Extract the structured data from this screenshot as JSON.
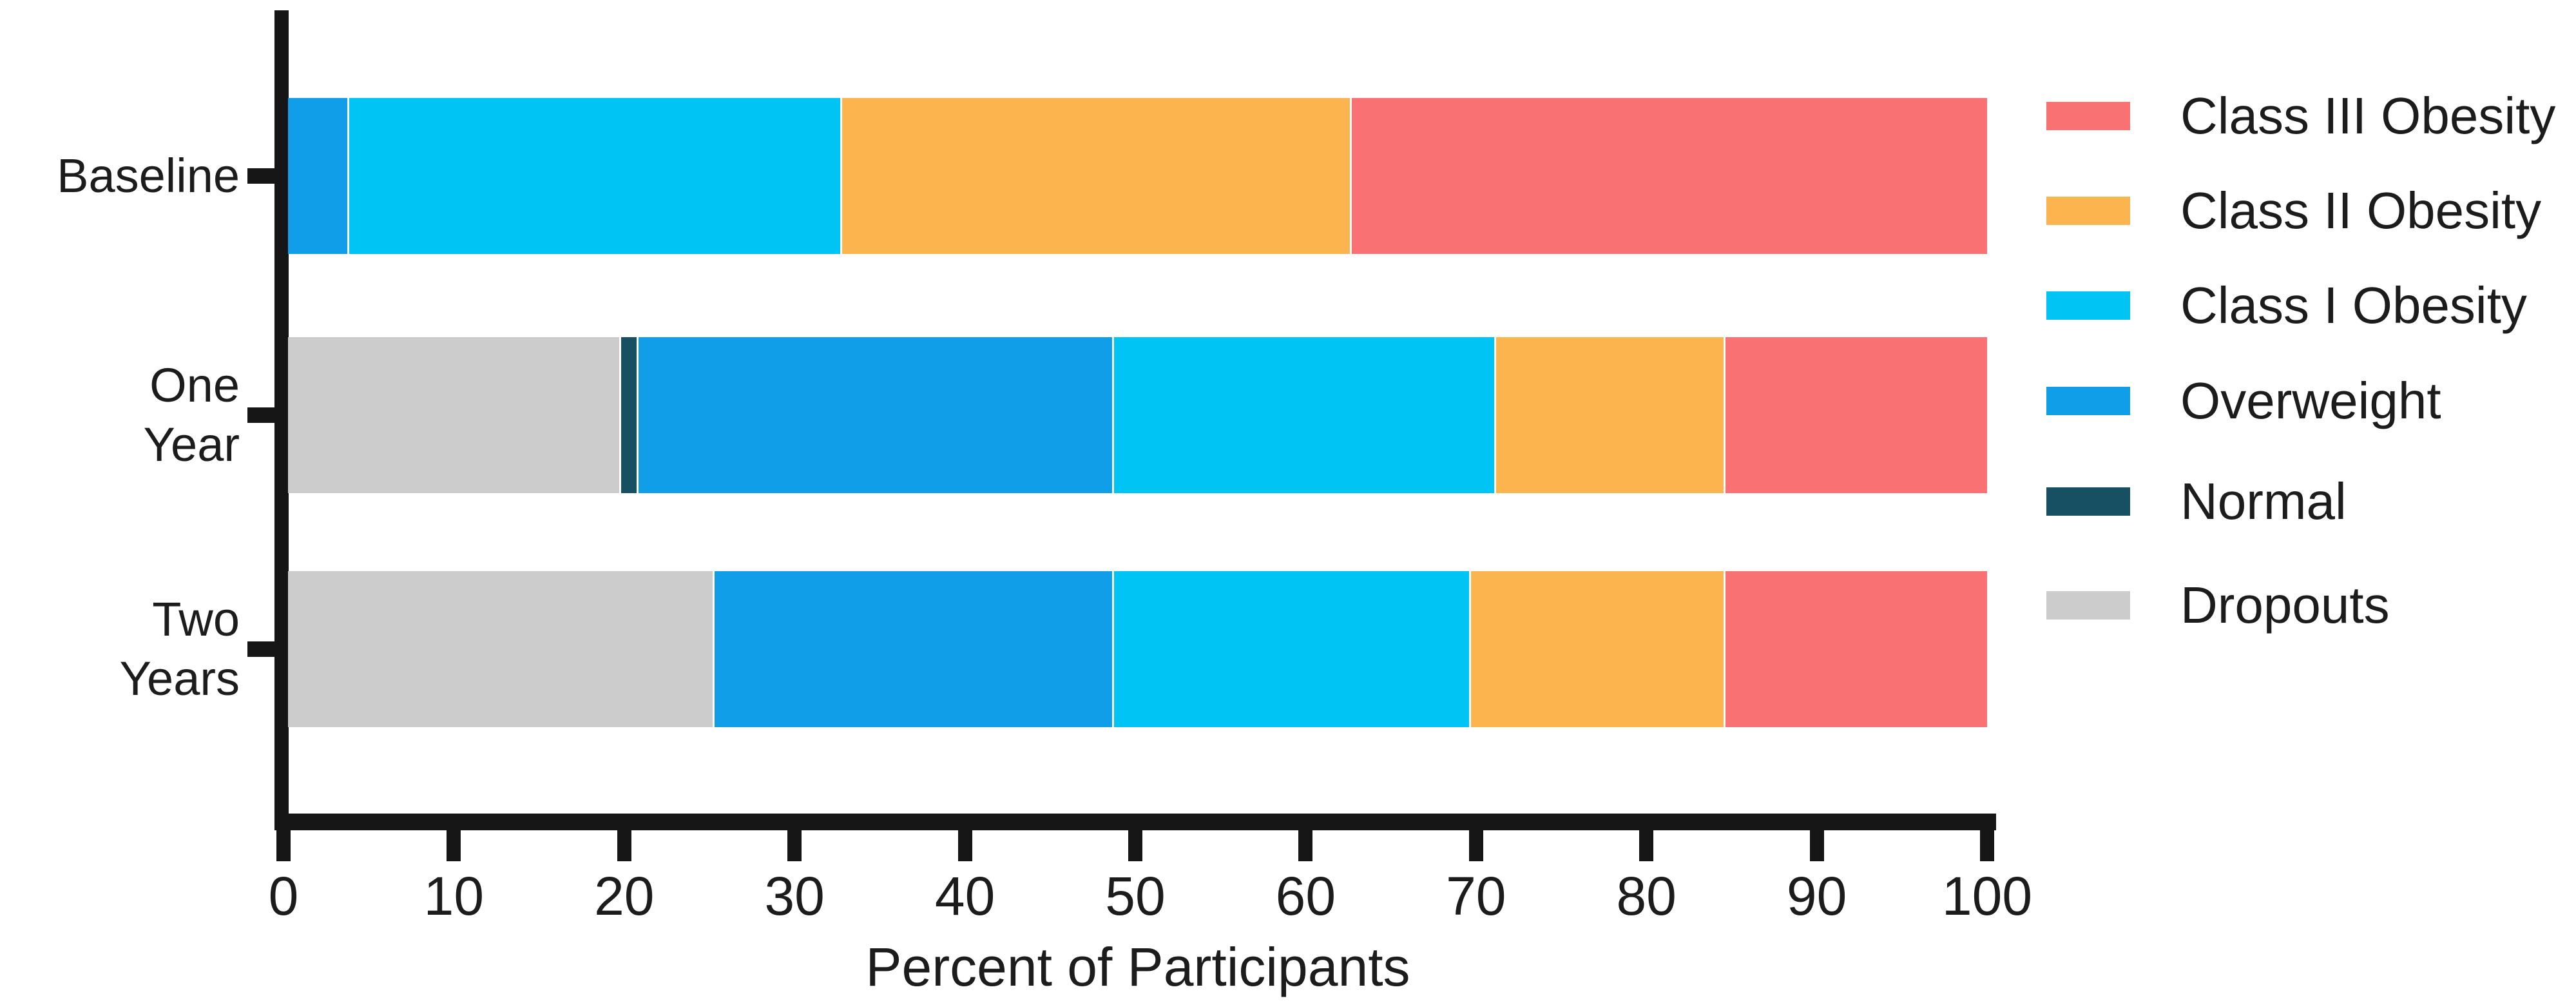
{
  "chart_data": {
    "type": "bar",
    "orientation": "horizontal",
    "stacked": true,
    "title": "",
    "xlabel": "Percent of Participants",
    "xlim": [
      0,
      100
    ],
    "x_ticks": [
      "0",
      "10",
      "20",
      "30",
      "40",
      "50",
      "60",
      "70",
      "80",
      "90",
      "100"
    ],
    "grid": false,
    "legend_position": "right",
    "categories": [
      "Baseline",
      "One Year",
      "Two Years"
    ],
    "category_label_lines": [
      [
        "Baseline"
      ],
      [
        "One",
        "Year"
      ],
      [
        "Two",
        "Years"
      ]
    ],
    "series": [
      {
        "name": "Dropouts",
        "color": "#CCCCCC",
        "values": [
          0,
          19.5,
          25
        ]
      },
      {
        "name": "Normal",
        "color": "#165062",
        "values": [
          0,
          1,
          0
        ]
      },
      {
        "name": "Overweight",
        "color": "#109EE9",
        "values": [
          3.5,
          28,
          23.5
        ]
      },
      {
        "name": "Class I Obesity",
        "color": "#00C5F4",
        "values": [
          29,
          22.5,
          21
        ]
      },
      {
        "name": "Class II Obesity",
        "color": "#FCB44F",
        "values": [
          30,
          13.5,
          15
        ]
      },
      {
        "name": "Class III Obesity",
        "color": "#FA7173",
        "values": [
          37.5,
          15.5,
          15.5
        ]
      }
    ],
    "legend_order": [
      "Class III Obesity",
      "Class II Obesity",
      "Class I Obesity",
      "Overweight",
      "Normal",
      "Dropouts"
    ]
  }
}
